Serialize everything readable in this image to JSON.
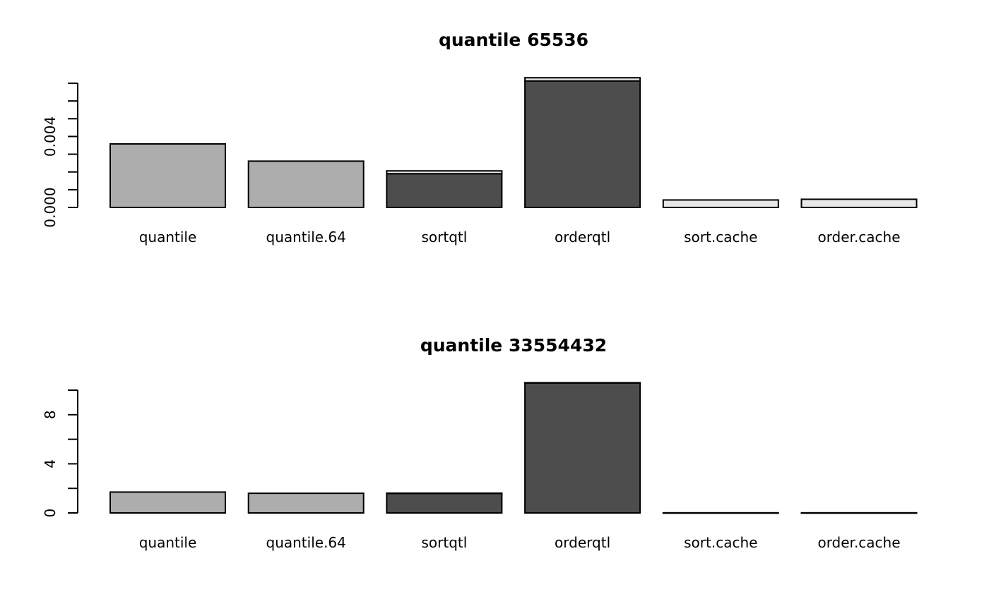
{
  "chart_data": [
    {
      "type": "bar",
      "stacked": true,
      "title": "quantile 65536",
      "xlabel": "",
      "ylabel": "",
      "ylim": [
        0,
        0.007
      ],
      "ytick_labels": [
        "0.000",
        "0.004"
      ],
      "ytick_label_values": [
        0.0,
        0.004
      ],
      "ytick_minor_values": [
        0.001,
        0.002,
        0.003,
        0.005,
        0.006,
        0.007
      ],
      "categories": [
        "quantile",
        "quantile.64",
        "sortqtl",
        "orderqtl",
        "sort.cache",
        "order.cache"
      ],
      "series": [
        {
          "color": "#adadad",
          "values": [
            0.00358,
            0.00261,
            0,
            0,
            0,
            0
          ]
        },
        {
          "color": "#4d4d4d",
          "values": [
            0,
            0,
            0.0019,
            0.00713,
            0,
            0
          ]
        },
        {
          "color": "#e8e8e8",
          "values": [
            0,
            0,
            0.00016,
            0.00018,
            0.00042,
            0.00046
          ]
        }
      ]
    },
    {
      "type": "bar",
      "stacked": true,
      "title": "quantile 33554432",
      "xlabel": "",
      "ylabel": "",
      "ylim": [
        0,
        10
      ],
      "ytick_labels": [
        "0",
        "4",
        "8"
      ],
      "ytick_label_values": [
        0,
        4,
        8
      ],
      "ytick_minor_values": [
        2,
        6,
        10
      ],
      "categories": [
        "quantile",
        "quantile.64",
        "sortqtl",
        "orderqtl",
        "sort.cache",
        "order.cache"
      ],
      "series": [
        {
          "color": "#adadad",
          "values": [
            1.7,
            1.6,
            0,
            0,
            0,
            0
          ]
        },
        {
          "color": "#4d4d4d",
          "values": [
            0,
            0,
            1.6,
            10.6,
            0,
            0
          ]
        },
        {
          "color": "#e8e8e8",
          "values": [
            0,
            0,
            0.01,
            0.01,
            0.01,
            0.01
          ]
        }
      ]
    }
  ]
}
